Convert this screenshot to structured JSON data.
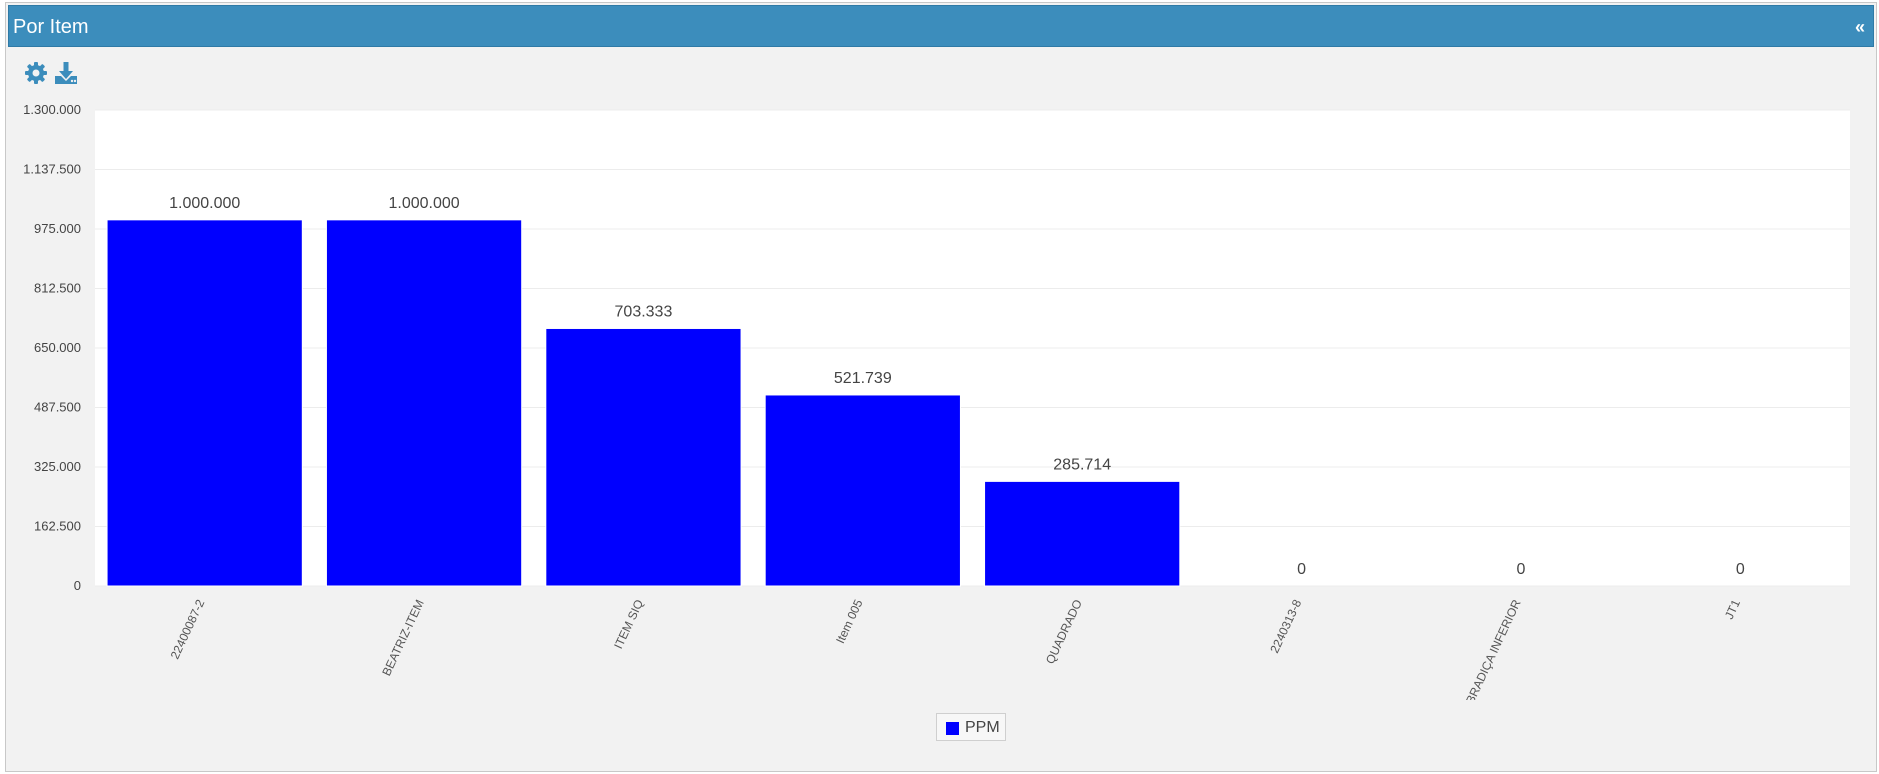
{
  "header": {
    "title": "Por Item",
    "collapse_label": "«"
  },
  "toolbar": {
    "icons": [
      "gear-icon",
      "download-icon"
    ]
  },
  "colors": {
    "header_bg": "#3c8dbc",
    "bar": "#0000ff",
    "plot_bg": "#ffffff",
    "panel_bg": "#f2f2f2"
  },
  "legend": {
    "label": "PPM",
    "color": "#0000ff",
    "placement": "bottom-center"
  },
  "chart_data": {
    "type": "bar",
    "categories": [
      "22400087-2",
      "BEATRIZ-ITEM",
      "ITEM SIQ",
      "Item 005",
      "QUADRADO",
      "2240313-8",
      "DOBRADIÇA INFERIOR",
      "JT1"
    ],
    "series": [
      {
        "name": "PPM",
        "values": [
          1000000,
          1000000,
          703333,
          521739,
          285714,
          0,
          0,
          0
        ]
      }
    ],
    "data_labels": [
      "1.000.000",
      "1.000.000",
      "703.333",
      "521.739",
      "285.714",
      "0",
      "0",
      "0"
    ],
    "y_ticks": [
      0,
      162500,
      325000,
      487500,
      650000,
      812500,
      975000,
      1137500,
      1300000
    ],
    "y_tick_labels": [
      "0",
      "162.500",
      "325.000",
      "487.500",
      "650.000",
      "812.500",
      "975.000",
      "1.137.500",
      "1.300.000"
    ],
    "ylim": [
      0,
      1300000
    ],
    "grid": true,
    "title": "",
    "xlabel": "",
    "ylabel": ""
  }
}
